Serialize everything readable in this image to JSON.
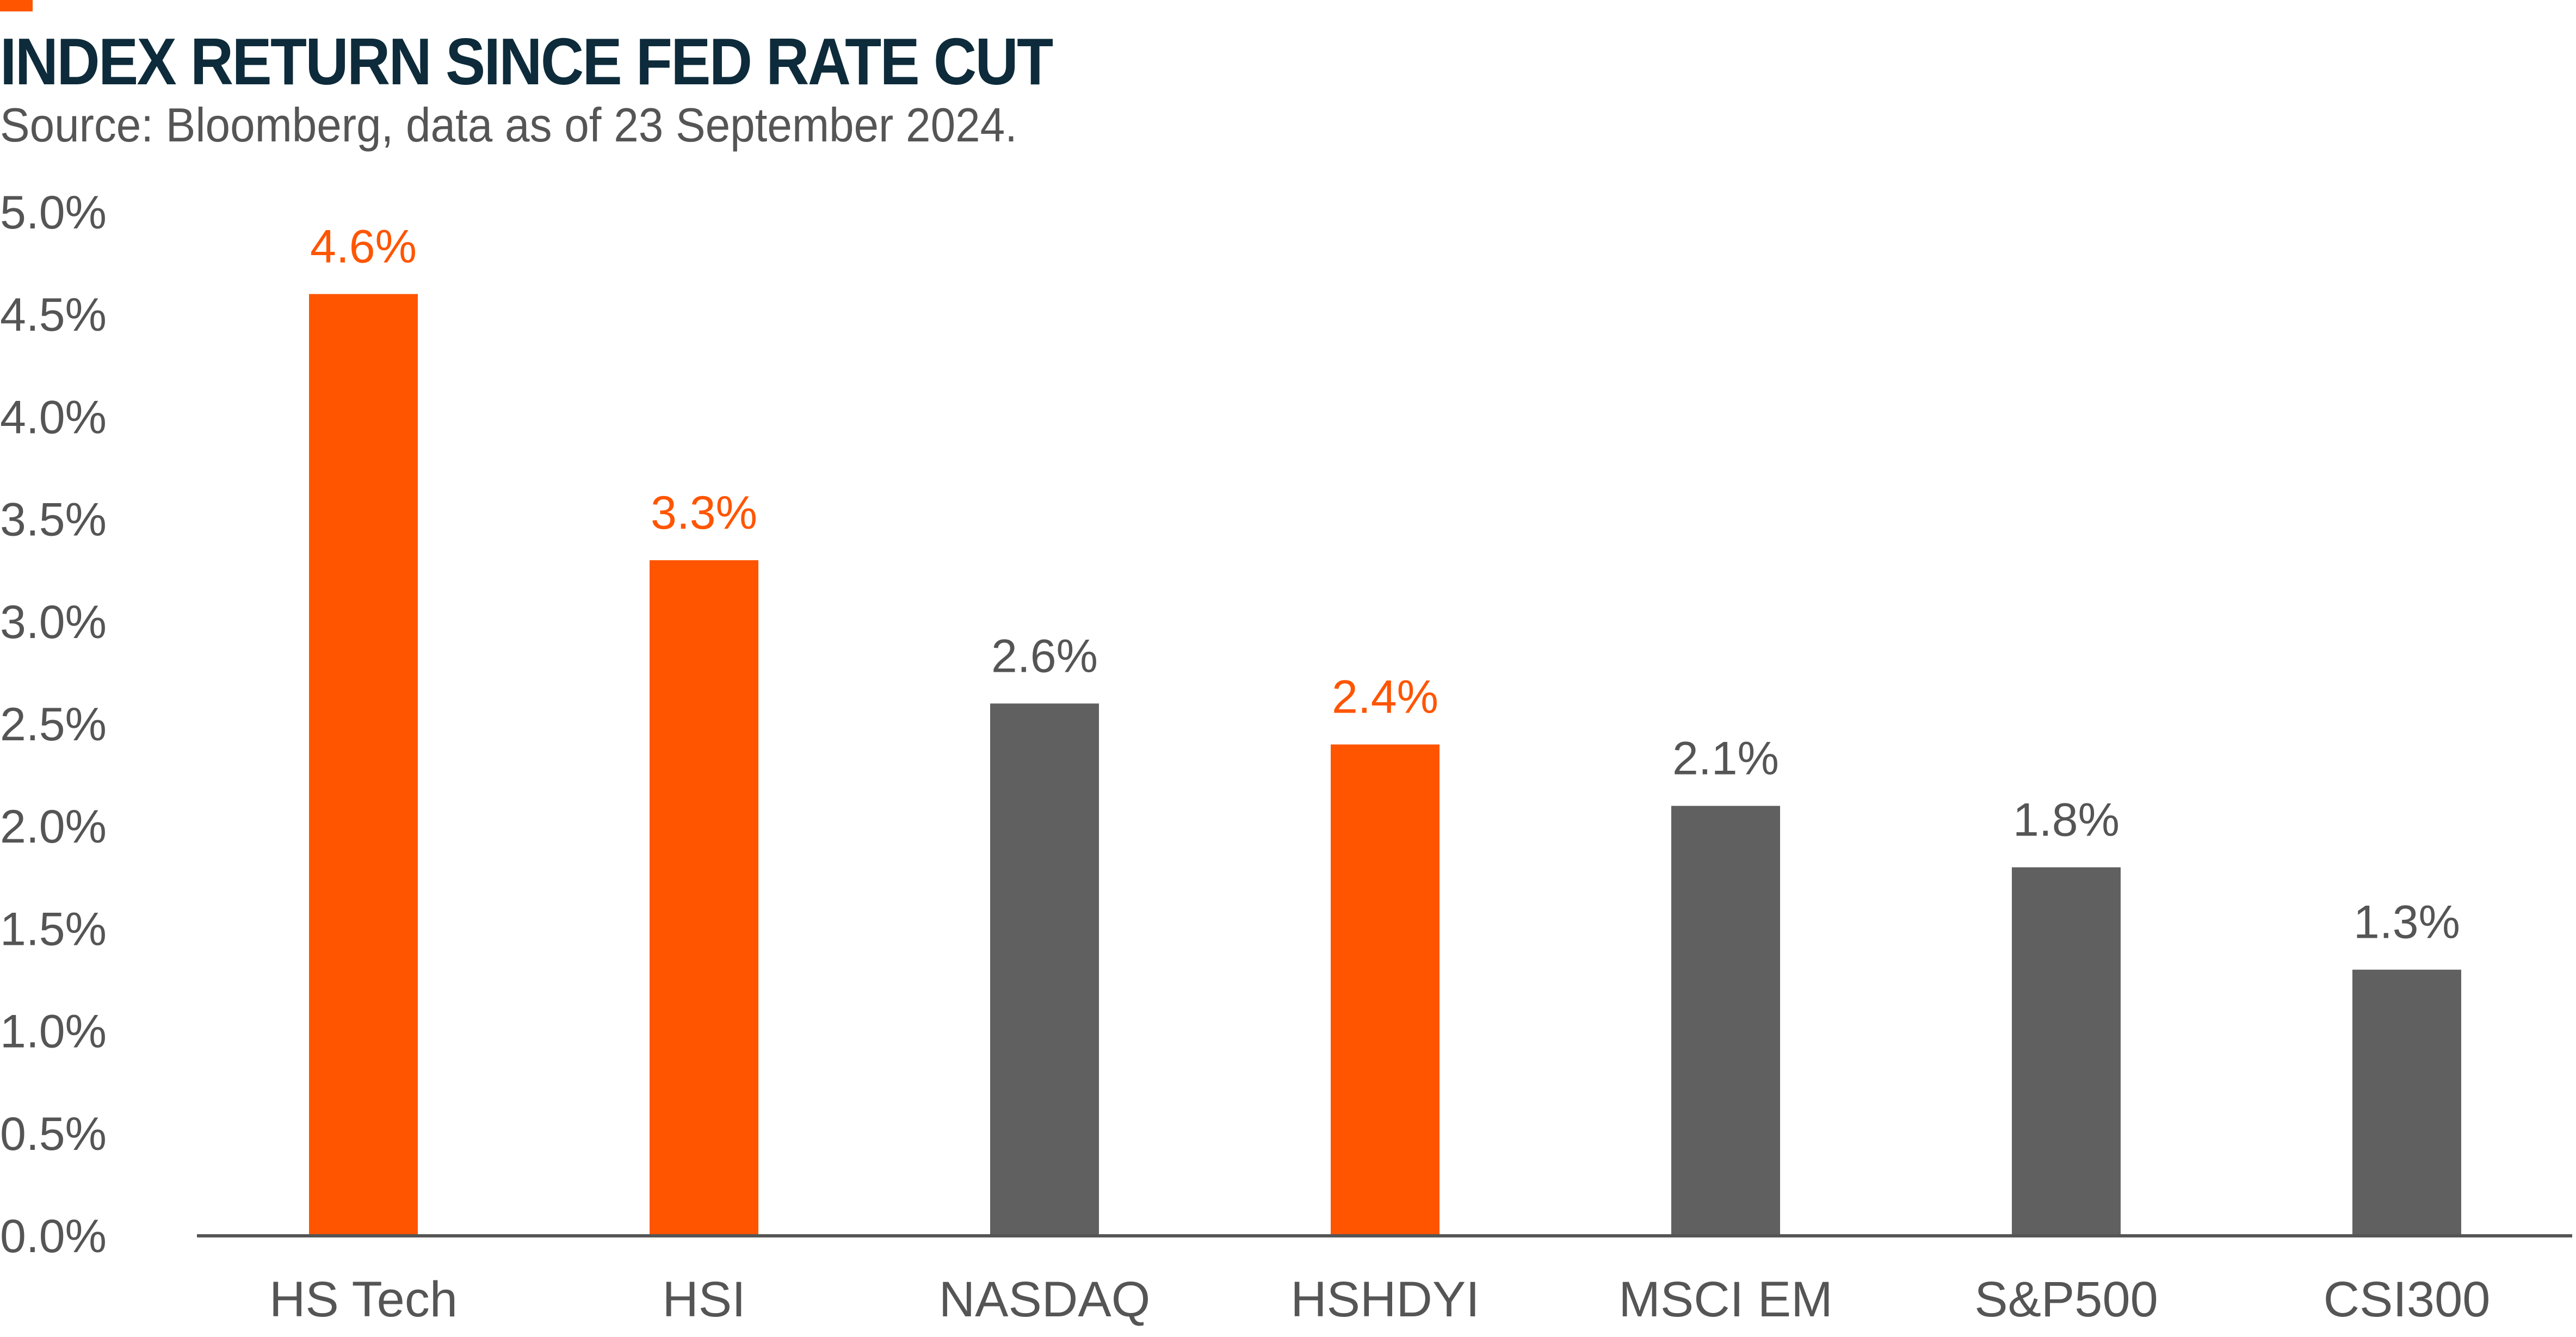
{
  "title": "INDEX RETURN SINCE FED RATE CUT",
  "subtitle": "Source: Bloomberg, data as of 23 September 2024.",
  "colors": {
    "highlight": "#ff5500",
    "neutral": "#606060",
    "title": "#0d2b3a",
    "text": "#555555",
    "axis": "#555555"
  },
  "chart_data": {
    "type": "bar",
    "title": "INDEX RETURN SINCE FED RATE CUT",
    "subtitle": "Source: Bloomberg, data as of 23 September 2024.",
    "xlabel": "",
    "ylabel": "",
    "ylim": [
      0,
      5.0
    ],
    "y_ticks": [
      "0.0%",
      "0.5%",
      "1.0%",
      "1.5%",
      "2.0%",
      "2.5%",
      "3.0%",
      "3.5%",
      "4.0%",
      "4.5%",
      "5.0%"
    ],
    "grid": false,
    "legend": "none",
    "categories": [
      "HS Tech",
      "HSI",
      "NASDAQ",
      "HSHDYI",
      "MSCI EM",
      "S&P500",
      "CSI300"
    ],
    "values": [
      4.6,
      3.3,
      2.6,
      2.4,
      2.1,
      1.8,
      1.3
    ],
    "data_labels": [
      "4.6%",
      "3.3%",
      "2.6%",
      "2.4%",
      "2.1%",
      "1.8%",
      "1.3%"
    ],
    "bar_colors": [
      "#ff5500",
      "#ff5500",
      "#606060",
      "#ff5500",
      "#606060",
      "#606060",
      "#606060"
    ]
  }
}
